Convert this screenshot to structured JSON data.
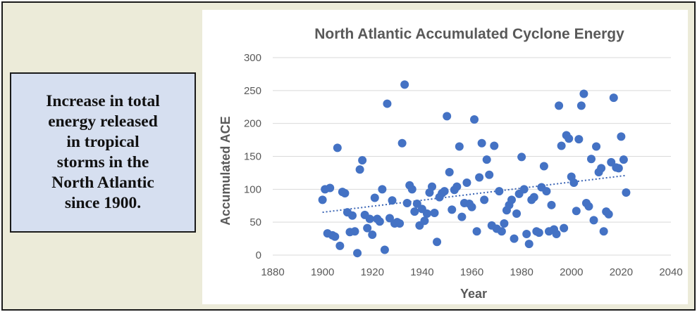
{
  "callout": {
    "text": "Increase in total\nenergy released\nin tropical\nstorms in the\nNorth Atlantic\nsince 1900."
  },
  "colors": {
    "background": "#ecebd9",
    "callout_fill": "#d6dff0",
    "point": "#4472c4",
    "trendline": "#3a64b4",
    "text": "#595959",
    "gridline": "#d9d9d9"
  },
  "chart_data": {
    "type": "scatter",
    "title": "North Atlantic Accumulated Cyclone Energy",
    "xlabel": "Year",
    "ylabel": "Accumulated ACE",
    "xlim": [
      1880,
      2040
    ],
    "ylim": [
      0,
      300
    ],
    "xticks": [
      1880,
      1900,
      1920,
      1940,
      1960,
      1980,
      2000,
      2020,
      2040
    ],
    "yticks": [
      0,
      50,
      100,
      150,
      200,
      250,
      300
    ],
    "grid": "horizontal",
    "legend": "none",
    "trendline": {
      "style": "dotted-linear",
      "points": [
        [
          1900,
          65
        ],
        [
          2022,
          121
        ]
      ]
    },
    "points": [
      [
        1900,
        84
      ],
      [
        1901,
        100
      ],
      [
        1902,
        33
      ],
      [
        1903,
        102
      ],
      [
        1904,
        30
      ],
      [
        1905,
        28
      ],
      [
        1906,
        163
      ],
      [
        1907,
        14
      ],
      [
        1908,
        96
      ],
      [
        1909,
        94
      ],
      [
        1910,
        65
      ],
      [
        1911,
        35
      ],
      [
        1912,
        60
      ],
      [
        1913,
        36
      ],
      [
        1914,
        3
      ],
      [
        1915,
        130
      ],
      [
        1916,
        144
      ],
      [
        1917,
        61
      ],
      [
        1918,
        41
      ],
      [
        1919,
        55
      ],
      [
        1920,
        31
      ],
      [
        1921,
        87
      ],
      [
        1922,
        55
      ],
      [
        1923,
        51
      ],
      [
        1924,
        100
      ],
      [
        1925,
        8
      ],
      [
        1926,
        230
      ],
      [
        1927,
        56
      ],
      [
        1928,
        83
      ],
      [
        1929,
        48
      ],
      [
        1930,
        50
      ],
      [
        1931,
        48
      ],
      [
        1932,
        170
      ],
      [
        1933,
        259
      ],
      [
        1934,
        79
      ],
      [
        1935,
        106
      ],
      [
        1936,
        100
      ],
      [
        1937,
        66
      ],
      [
        1938,
        78
      ],
      [
        1939,
        45
      ],
      [
        1940,
        70
      ],
      [
        1941,
        52
      ],
      [
        1942,
        63
      ],
      [
        1943,
        95
      ],
      [
        1944,
        104
      ],
      [
        1945,
        64
      ],
      [
        1946,
        20
      ],
      [
        1947,
        88
      ],
      [
        1948,
        94
      ],
      [
        1949,
        97
      ],
      [
        1950,
        211
      ],
      [
        1951,
        126
      ],
      [
        1952,
        69
      ],
      [
        1953,
        99
      ],
      [
        1954,
        104
      ],
      [
        1955,
        165
      ],
      [
        1956,
        58
      ],
      [
        1957,
        79
      ],
      [
        1958,
        110
      ],
      [
        1959,
        78
      ],
      [
        1960,
        73
      ],
      [
        1961,
        206
      ],
      [
        1962,
        36
      ],
      [
        1963,
        118
      ],
      [
        1964,
        170
      ],
      [
        1965,
        84
      ],
      [
        1966,
        145
      ],
      [
        1967,
        122
      ],
      [
        1968,
        45
      ],
      [
        1969,
        166
      ],
      [
        1970,
        40
      ],
      [
        1971,
        97
      ],
      [
        1972,
        36
      ],
      [
        1973,
        48
      ],
      [
        1974,
        68
      ],
      [
        1975,
        76
      ],
      [
        1976,
        84
      ],
      [
        1977,
        25
      ],
      [
        1978,
        63
      ],
      [
        1979,
        93
      ],
      [
        1980,
        149
      ],
      [
        1981,
        100
      ],
      [
        1982,
        32
      ],
      [
        1983,
        17
      ],
      [
        1984,
        84
      ],
      [
        1985,
        88
      ],
      [
        1986,
        36
      ],
      [
        1987,
        34
      ],
      [
        1988,
        103
      ],
      [
        1989,
        135
      ],
      [
        1990,
        97
      ],
      [
        1991,
        36
      ],
      [
        1992,
        76
      ],
      [
        1993,
        39
      ],
      [
        1994,
        32
      ],
      [
        1995,
        227
      ],
      [
        1996,
        166
      ],
      [
        1997,
        41
      ],
      [
        1998,
        182
      ],
      [
        1999,
        177
      ],
      [
        2000,
        119
      ],
      [
        2001,
        110
      ],
      [
        2002,
        67
      ],
      [
        2003,
        176
      ],
      [
        2004,
        227
      ],
      [
        2005,
        245
      ],
      [
        2006,
        79
      ],
      [
        2007,
        74
      ],
      [
        2008,
        146
      ],
      [
        2009,
        53
      ],
      [
        2010,
        165
      ],
      [
        2011,
        126
      ],
      [
        2012,
        132
      ],
      [
        2013,
        36
      ],
      [
        2014,
        66
      ],
      [
        2015,
        62
      ],
      [
        2016,
        141
      ],
      [
        2017,
        239
      ],
      [
        2018,
        133
      ],
      [
        2019,
        132
      ],
      [
        2020,
        180
      ],
      [
        2021,
        145
      ],
      [
        2022,
        95
      ]
    ]
  }
}
